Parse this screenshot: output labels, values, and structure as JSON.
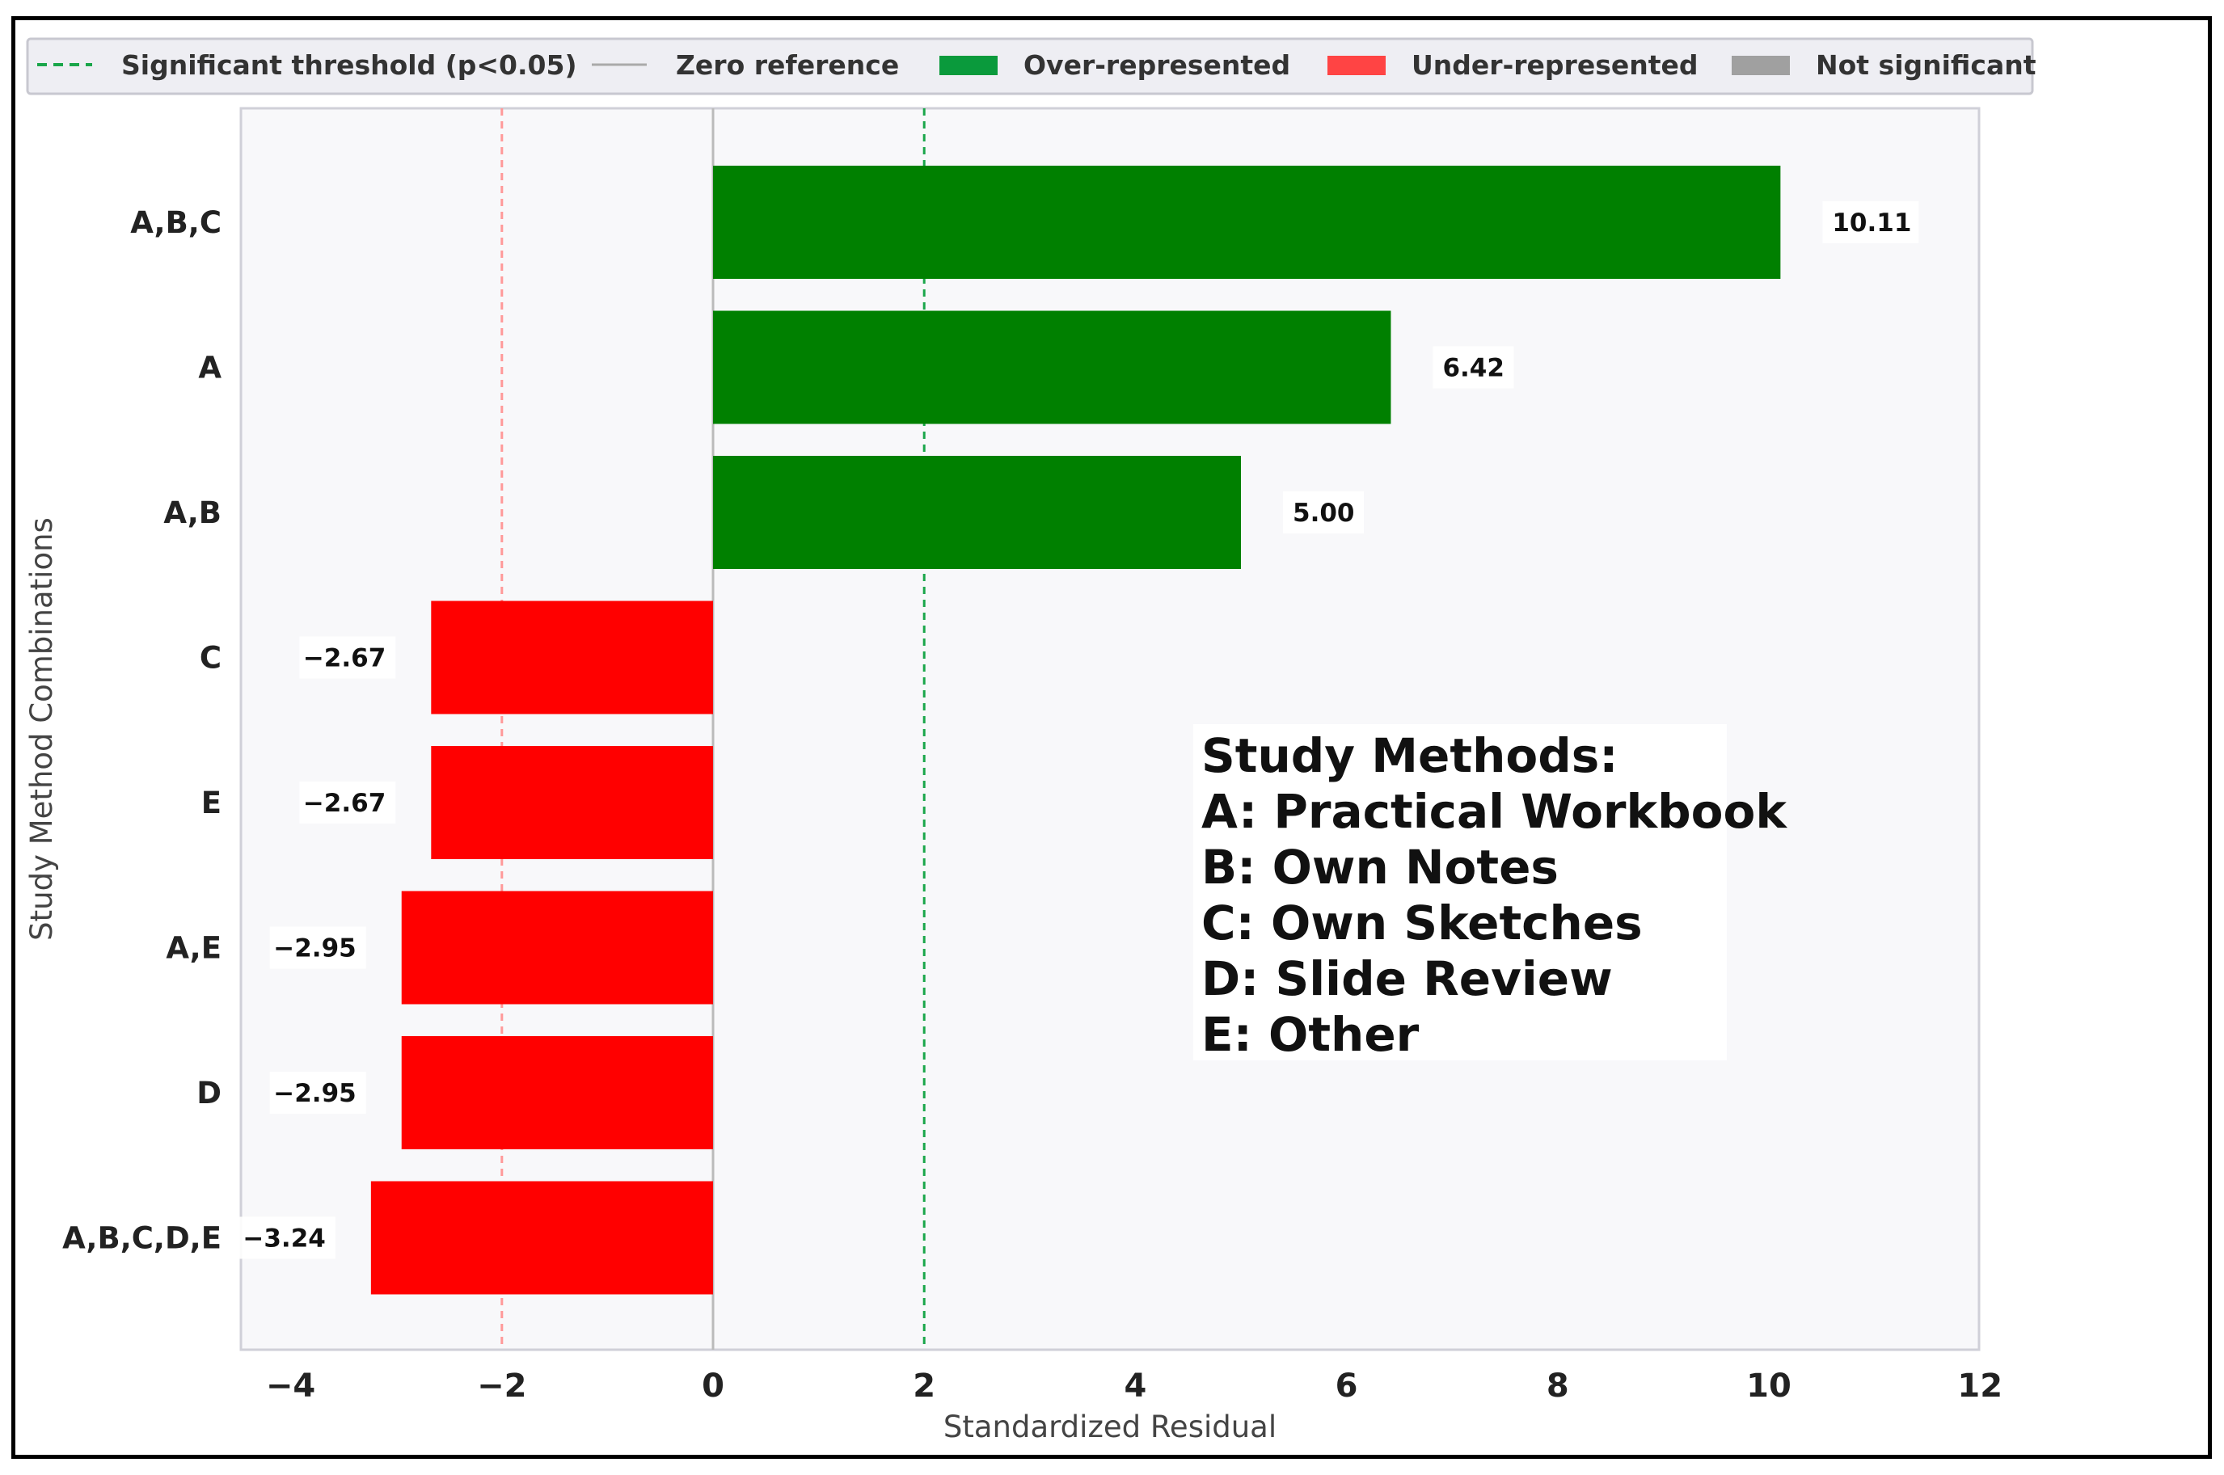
{
  "chart_data": {
    "type": "bar",
    "orientation": "horizontal",
    "categories": [
      "A,B,C",
      "A",
      "A,B",
      "C",
      "E",
      "A,E",
      "D",
      "A,B,C,D,E"
    ],
    "values": [
      10.11,
      6.42,
      5.0,
      -2.67,
      -2.67,
      -2.95,
      -2.95,
      -3.24
    ],
    "value_labels": [
      "10.11",
      "6.42",
      "5.00",
      "−2.67",
      "−2.67",
      "−2.95",
      "−2.95",
      "−3.24"
    ],
    "bar_status": [
      "over",
      "over",
      "over",
      "under",
      "under",
      "under",
      "under",
      "under"
    ],
    "xlabel": "Standardized Residual",
    "ylabel": "Study Method Combinations",
    "xlim": [
      -4.5,
      12
    ],
    "xticks": [
      -4,
      -2,
      0,
      2,
      4,
      6,
      8,
      10,
      12
    ],
    "xtick_labels": [
      "−4",
      "−2",
      "0",
      "2",
      "4",
      "6",
      "8",
      "10",
      "12"
    ],
    "threshold_lines": [
      {
        "x": -2,
        "color": "#ff9999",
        "style": "dashed"
      },
      {
        "x": 2,
        "color": "#1aa64a",
        "style": "dashed"
      }
    ],
    "zero_line": {
      "x": 0,
      "color": "#bbbbbb"
    },
    "colors": {
      "over": "#008000",
      "under": "#ff0000",
      "not_significant": "#a0a0a0",
      "plot_bg": "#f8f8fa"
    },
    "grid": false,
    "legend": {
      "placement": "top",
      "items": [
        {
          "label": "Significant threshold (p<0.05)",
          "kind": "dashed",
          "color": "#1aa64a"
        },
        {
          "label": "Zero reference",
          "kind": "line",
          "color": "#aaaaaa"
        },
        {
          "label": "Over-represented",
          "kind": "patch",
          "color": "#0a9a3c"
        },
        {
          "label": "Under-represented",
          "kind": "patch",
          "color": "#ff4444"
        },
        {
          "label": "Not significant",
          "kind": "patch",
          "color": "#a0a0a0"
        }
      ]
    },
    "annotation": {
      "lines": [
        "Study Methods:",
        "A: Practical Workbook",
        "B: Own Notes",
        "C: Own Sketches",
        "D: Slide Review",
        "E: Other"
      ]
    }
  }
}
